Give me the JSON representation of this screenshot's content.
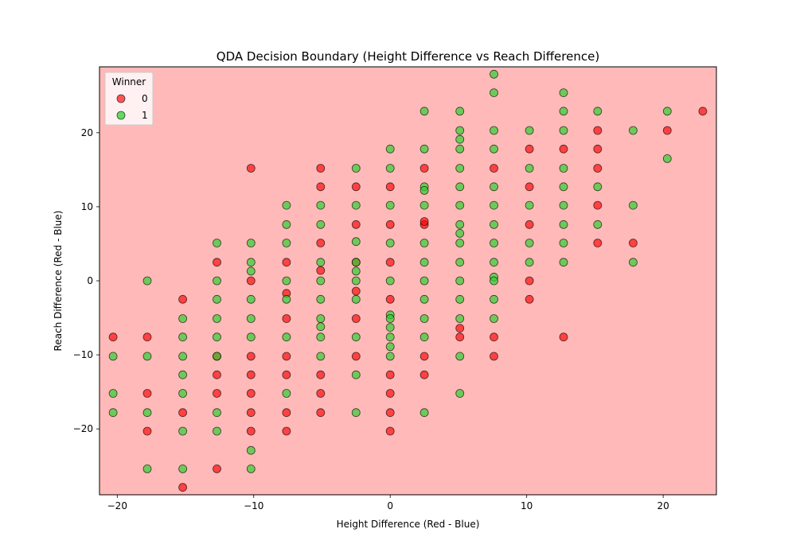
{
  "chart_data": {
    "type": "scatter",
    "title": "QDA Decision Boundary (Height Difference vs Reach Difference)",
    "xlabel": "Height Difference (Red - Blue)",
    "ylabel": "Reach Difference (Red - Blue)",
    "xlim": [
      -21.3,
      23.9
    ],
    "ylim": [
      -28.9,
      28.9
    ],
    "xticks": [
      -20,
      -10,
      0,
      10,
      20
    ],
    "xtick_labels": [
      "−20",
      "−10",
      "0",
      "10",
      "20"
    ],
    "yticks": [
      -20,
      -10,
      0,
      10,
      20
    ],
    "ytick_labels": [
      "−20",
      "−10",
      "0",
      "10",
      "20"
    ],
    "background_region": {
      "predicted_class": "0",
      "color": "#ffb9b9"
    },
    "legend": {
      "title": "Winner",
      "position": "top-left",
      "entries": [
        {
          "label": "0",
          "color": "#ff0000"
        },
        {
          "label": "1",
          "color": "#2fd12f"
        }
      ]
    },
    "series": [
      {
        "name": "0",
        "color": "#ff0000",
        "points": [
          [
            -20.3,
            -7.6
          ],
          [
            -17.8,
            -7.6
          ],
          [
            -17.8,
            -15.2
          ],
          [
            -17.8,
            -20.3
          ],
          [
            -15.2,
            -2.5
          ],
          [
            -15.2,
            -17.8
          ],
          [
            -15.2,
            -27.9
          ],
          [
            -12.7,
            2.5
          ],
          [
            -12.7,
            -10.2
          ],
          [
            -12.7,
            -12.7
          ],
          [
            -12.7,
            -15.2
          ],
          [
            -12.7,
            -25.4
          ],
          [
            -10.2,
            15.2
          ],
          [
            -10.2,
            0
          ],
          [
            -10.2,
            -10.2
          ],
          [
            -10.2,
            -12.7
          ],
          [
            -10.2,
            -15.2
          ],
          [
            -10.2,
            -17.8
          ],
          [
            -10.2,
            -20.3
          ],
          [
            -7.6,
            2.5
          ],
          [
            -7.6,
            -1.7
          ],
          [
            -7.6,
            -5.1
          ],
          [
            -7.6,
            -10.2
          ],
          [
            -7.6,
            -12.7
          ],
          [
            -7.6,
            -17.8
          ],
          [
            -7.6,
            -20.3
          ],
          [
            -5.1,
            15.2
          ],
          [
            -5.1,
            12.7
          ],
          [
            -5.1,
            5.1
          ],
          [
            -5.1,
            1.4
          ],
          [
            -5.1,
            -12.7
          ],
          [
            -5.1,
            -15.2
          ],
          [
            -5.1,
            -17.8
          ],
          [
            -2.5,
            12.7
          ],
          [
            -2.5,
            7.6
          ],
          [
            -2.5,
            2.5
          ],
          [
            -2.5,
            -1.4
          ],
          [
            -2.5,
            -5.1
          ],
          [
            -2.5,
            -10.2
          ],
          [
            0,
            12.7
          ],
          [
            0,
            7.6
          ],
          [
            0,
            2.5
          ],
          [
            0,
            -2.5
          ],
          [
            0,
            -12.7
          ],
          [
            0,
            -15.2
          ],
          [
            0,
            -17.8
          ],
          [
            0,
            -20.3
          ],
          [
            2.5,
            15.2
          ],
          [
            2.5,
            7.6
          ],
          [
            2.5,
            8
          ],
          [
            2.5,
            -10.2
          ],
          [
            2.5,
            -12.7
          ],
          [
            5.1,
            -6.4
          ],
          [
            5.1,
            -7.6
          ],
          [
            7.6,
            15.2
          ],
          [
            7.6,
            -7.6
          ],
          [
            7.6,
            -10.2
          ],
          [
            10.2,
            17.8
          ],
          [
            10.2,
            12.7
          ],
          [
            10.2,
            7.6
          ],
          [
            10.2,
            0
          ],
          [
            10.2,
            -2.5
          ],
          [
            12.7,
            17.8
          ],
          [
            12.7,
            -7.6
          ],
          [
            15.2,
            20.3
          ],
          [
            15.2,
            17.8
          ],
          [
            15.2,
            15.2
          ],
          [
            15.2,
            10.2
          ],
          [
            15.2,
            5.1
          ],
          [
            17.8,
            5.1
          ],
          [
            20.3,
            20.3
          ],
          [
            22.9,
            22.9
          ]
        ]
      },
      {
        "name": "1",
        "color": "#2fd12f",
        "points": [
          [
            -20.3,
            -10.2
          ],
          [
            -20.3,
            -15.2
          ],
          [
            -20.3,
            -17.8
          ],
          [
            -17.8,
            0
          ],
          [
            -17.8,
            -10.2
          ],
          [
            -17.8,
            -17.8
          ],
          [
            -17.8,
            -25.4
          ],
          [
            -15.2,
            -5.1
          ],
          [
            -15.2,
            -7.6
          ],
          [
            -15.2,
            -10.2
          ],
          [
            -15.2,
            -12.7
          ],
          [
            -15.2,
            -15.2
          ],
          [
            -15.2,
            -20.3
          ],
          [
            -15.2,
            -25.4
          ],
          [
            -12.7,
            5.1
          ],
          [
            -12.7,
            0
          ],
          [
            -12.7,
            -2.5
          ],
          [
            -12.7,
            -5.1
          ],
          [
            -12.7,
            -7.6
          ],
          [
            -12.7,
            -10.2
          ],
          [
            -12.7,
            -17.8
          ],
          [
            -12.7,
            -20.3
          ],
          [
            -10.2,
            5.1
          ],
          [
            -10.2,
            2.5
          ],
          [
            -10.2,
            1.3
          ],
          [
            -10.2,
            -2.5
          ],
          [
            -10.2,
            -5.1
          ],
          [
            -10.2,
            -7.6
          ],
          [
            -10.2,
            -22.9
          ],
          [
            -10.2,
            -25.4
          ],
          [
            -7.6,
            10.2
          ],
          [
            -7.6,
            7.6
          ],
          [
            -7.6,
            5.1
          ],
          [
            -7.6,
            0
          ],
          [
            -7.6,
            -2.5
          ],
          [
            -7.6,
            -7.6
          ],
          [
            -7.6,
            -15.2
          ],
          [
            -5.1,
            10.2
          ],
          [
            -5.1,
            7.6
          ],
          [
            -5.1,
            2.5
          ],
          [
            -5.1,
            0
          ],
          [
            -5.1,
            -2.5
          ],
          [
            -5.1,
            -5.1
          ],
          [
            -5.1,
            -6.2
          ],
          [
            -5.1,
            -7.6
          ],
          [
            -5.1,
            -10.2
          ],
          [
            -2.5,
            15.2
          ],
          [
            -2.5,
            10.2
          ],
          [
            -2.5,
            5.3
          ],
          [
            -2.5,
            2.5
          ],
          [
            -2.5,
            1.3
          ],
          [
            -2.5,
            0
          ],
          [
            -2.5,
            -2.5
          ],
          [
            -2.5,
            -7.6
          ],
          [
            -2.5,
            -12.7
          ],
          [
            -2.5,
            -17.8
          ],
          [
            0,
            17.8
          ],
          [
            0,
            15.2
          ],
          [
            0,
            10.2
          ],
          [
            0,
            5.1
          ],
          [
            0,
            0
          ],
          [
            0,
            -4.6
          ],
          [
            0,
            -5.1
          ],
          [
            0,
            -6.3
          ],
          [
            0,
            -7.6
          ],
          [
            0,
            -8.9
          ],
          [
            0,
            -10.2
          ],
          [
            2.5,
            22.9
          ],
          [
            2.5,
            17.8
          ],
          [
            2.5,
            12.7
          ],
          [
            2.5,
            12.2
          ],
          [
            2.5,
            10.2
          ],
          [
            2.5,
            5.1
          ],
          [
            2.5,
            2.5
          ],
          [
            2.5,
            0
          ],
          [
            2.5,
            -2.5
          ],
          [
            2.5,
            -5.1
          ],
          [
            2.5,
            -7.6
          ],
          [
            2.5,
            -17.8
          ],
          [
            5.1,
            22.9
          ],
          [
            5.1,
            20.3
          ],
          [
            5.1,
            19.1
          ],
          [
            5.1,
            17.8
          ],
          [
            5.1,
            15.2
          ],
          [
            5.1,
            12.7
          ],
          [
            5.1,
            10.2
          ],
          [
            5.1,
            7.6
          ],
          [
            5.1,
            6.4
          ],
          [
            5.1,
            5.1
          ],
          [
            5.1,
            2.5
          ],
          [
            5.1,
            0
          ],
          [
            5.1,
            -2.5
          ],
          [
            5.1,
            -5.1
          ],
          [
            5.1,
            -10.2
          ],
          [
            5.1,
            -15.2
          ],
          [
            7.6,
            27.9
          ],
          [
            7.6,
            25.4
          ],
          [
            7.6,
            20.3
          ],
          [
            7.6,
            17.8
          ],
          [
            7.6,
            12.7
          ],
          [
            7.6,
            10.2
          ],
          [
            7.6,
            7.6
          ],
          [
            7.6,
            5.1
          ],
          [
            7.6,
            2.5
          ],
          [
            7.6,
            0.5
          ],
          [
            7.6,
            0
          ],
          [
            7.6,
            -2.5
          ],
          [
            7.6,
            -5.1
          ],
          [
            10.2,
            20.3
          ],
          [
            10.2,
            15.2
          ],
          [
            10.2,
            10.2
          ],
          [
            10.2,
            5.1
          ],
          [
            10.2,
            2.5
          ],
          [
            12.7,
            25.4
          ],
          [
            12.7,
            22.9
          ],
          [
            12.7,
            20.3
          ],
          [
            12.7,
            15.2
          ],
          [
            12.7,
            12.7
          ],
          [
            12.7,
            10.2
          ],
          [
            12.7,
            7.6
          ],
          [
            12.7,
            5.1
          ],
          [
            12.7,
            2.5
          ],
          [
            15.2,
            22.9
          ],
          [
            15.2,
            12.7
          ],
          [
            15.2,
            7.6
          ],
          [
            17.8,
            20.3
          ],
          [
            17.8,
            10.2
          ],
          [
            17.8,
            2.5
          ],
          [
            20.3,
            22.9
          ],
          [
            20.3,
            16.5
          ]
        ]
      }
    ]
  }
}
